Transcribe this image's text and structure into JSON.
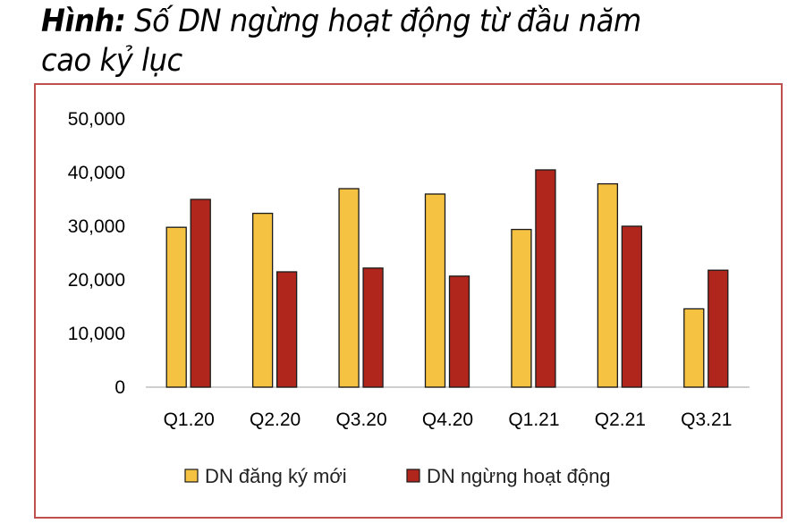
{
  "title": {
    "prefix": "Hình:",
    "text": "Số DN ngừng hoạt động từ đầu năm cao kỷ lục"
  },
  "chart_data": {
    "type": "bar",
    "categories": [
      "Q1.20",
      "Q2.20",
      "Q3.20",
      "Q4.20",
      "Q1.21",
      "Q2.21",
      "Q3.21"
    ],
    "series": [
      {
        "name": "DN đăng ký mới",
        "color": "#f5c242",
        "values": [
          29800,
          32400,
          37000,
          36000,
          29400,
          37900,
          14600
        ]
      },
      {
        "name": "DN ngừng hoạt động",
        "color": "#b0261c",
        "values": [
          35000,
          21500,
          22200,
          20700,
          40500,
          30000,
          21800
        ]
      }
    ],
    "yticks": [
      "0",
      "10,000",
      "20,000",
      "30,000",
      "40,000",
      "50,000"
    ],
    "ylim": [
      0,
      50000
    ],
    "grid": false,
    "legend": "bottom",
    "border_color": "#c0504d"
  }
}
